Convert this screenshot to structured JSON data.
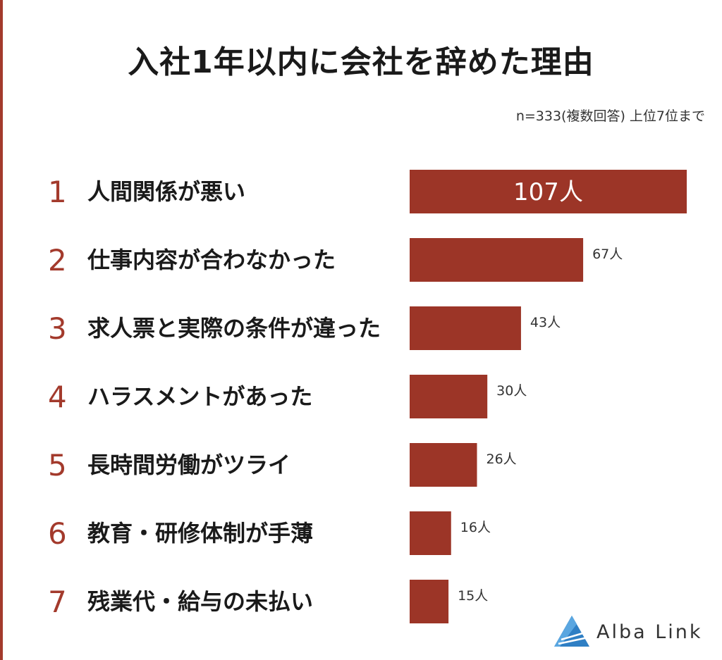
{
  "colors": {
    "accent": "#a33a2c",
    "bar": "#9c3527",
    "logo": "#2f7fc4"
  },
  "chart_data": {
    "type": "bar",
    "orientation": "horizontal",
    "title": "入社1年以内に会社を辞めた理由",
    "subtitle": "n=333(複数回答) 上位7位まで",
    "ranks": [
      "1",
      "2",
      "3",
      "4",
      "5",
      "6",
      "7"
    ],
    "categories": [
      "人間関係が悪い",
      "仕事内容が合わなかった",
      "求人票と実際の条件が違った",
      "ハラスメントがあった",
      "長時間労働がツライ",
      "教育・研修体制が手薄",
      "残業代・給与の未払い"
    ],
    "values": [
      107,
      67,
      43,
      30,
      26,
      16,
      15
    ],
    "value_labels": [
      "107人",
      "67人",
      "43人",
      "30人",
      "26人",
      "16人",
      "15人"
    ],
    "value_unit": "人",
    "xlim": [
      0,
      107
    ],
    "grid": false,
    "legend": "none"
  },
  "brand": {
    "name": "Alba Link",
    "icon": "alba-link-logo-icon"
  }
}
